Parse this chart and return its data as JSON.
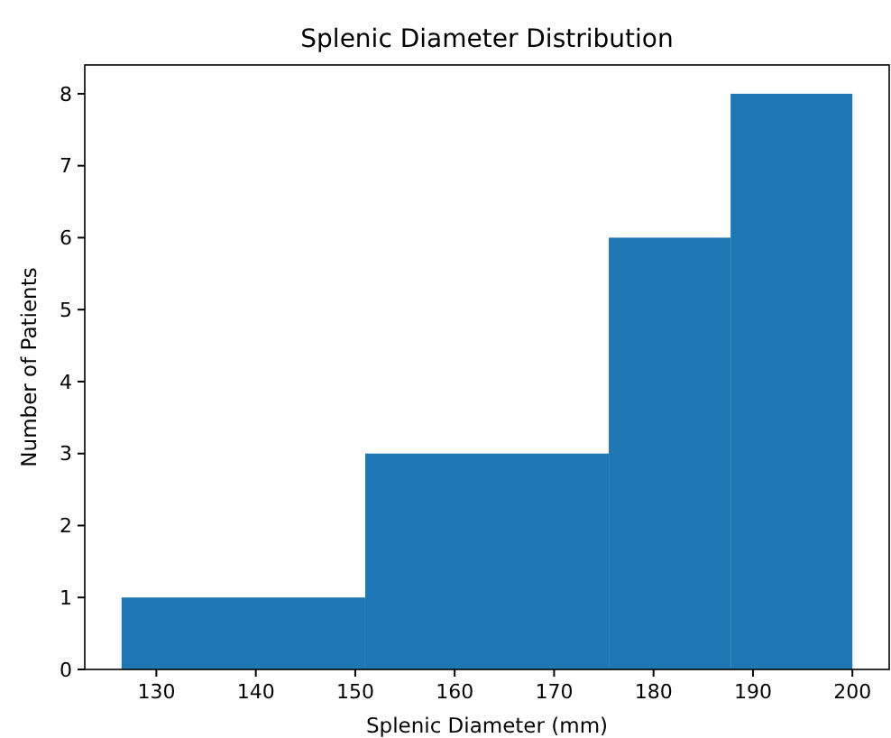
{
  "chart_data": {
    "type": "histogram",
    "title": "Splenic Diameter Distribution",
    "xlabel": "Splenic Diameter (mm)",
    "ylabel": "Number of Patients",
    "bins": [
      126.5,
      151,
      175.5,
      187.75,
      200
    ],
    "values": [
      1,
      3,
      6,
      8
    ],
    "color": "#1f77b4",
    "xlim": [
      122.8,
      203.7
    ],
    "xticks": [
      130,
      140,
      150,
      160,
      170,
      180,
      190,
      200
    ],
    "ylim": [
      0,
      8.4
    ],
    "yticks": [
      0,
      1,
      2,
      3,
      4,
      5,
      6,
      7,
      8
    ],
    "grid": false
  }
}
